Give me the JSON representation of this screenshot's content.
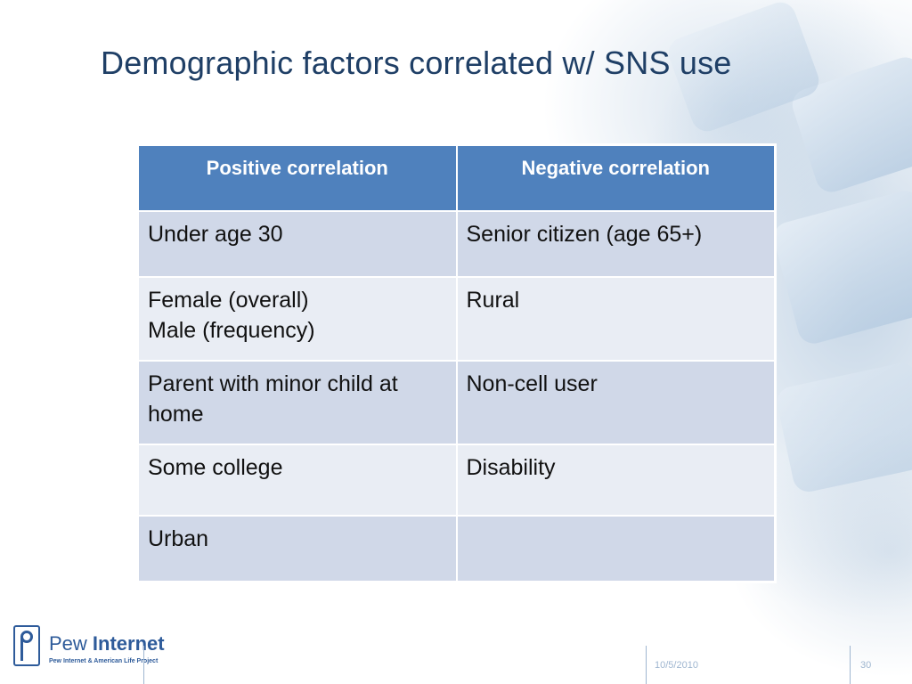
{
  "slide": {
    "title": "Demographic factors correlated w/ SNS use",
    "date": "10/5/2010",
    "page_number": "30"
  },
  "table": {
    "headers": [
      "Positive correlation",
      "Negative correlation"
    ],
    "rows": [
      {
        "positive": [
          "Under age 30"
        ],
        "negative": [
          "Senior citizen (age 65+)"
        ]
      },
      {
        "positive": [
          "Female (overall)",
          "Male (frequency)"
        ],
        "negative": [
          "Rural"
        ]
      },
      {
        "positive": [
          "Parent with minor child at home"
        ],
        "negative": [
          "Non-cell user"
        ]
      },
      {
        "positive": [
          "Some college"
        ],
        "negative": [
          "Disability"
        ]
      },
      {
        "positive": [
          "Urban"
        ],
        "negative": [
          ""
        ]
      }
    ]
  },
  "logo": {
    "name_light": "Pew",
    "name_bold": "Internet",
    "subtitle": "Pew Internet & American Life Project"
  },
  "colors": {
    "header_bg": "#4f81bd",
    "row_odd": "#d0d8e8",
    "row_even": "#e9edf4",
    "title": "#1f3f66"
  }
}
